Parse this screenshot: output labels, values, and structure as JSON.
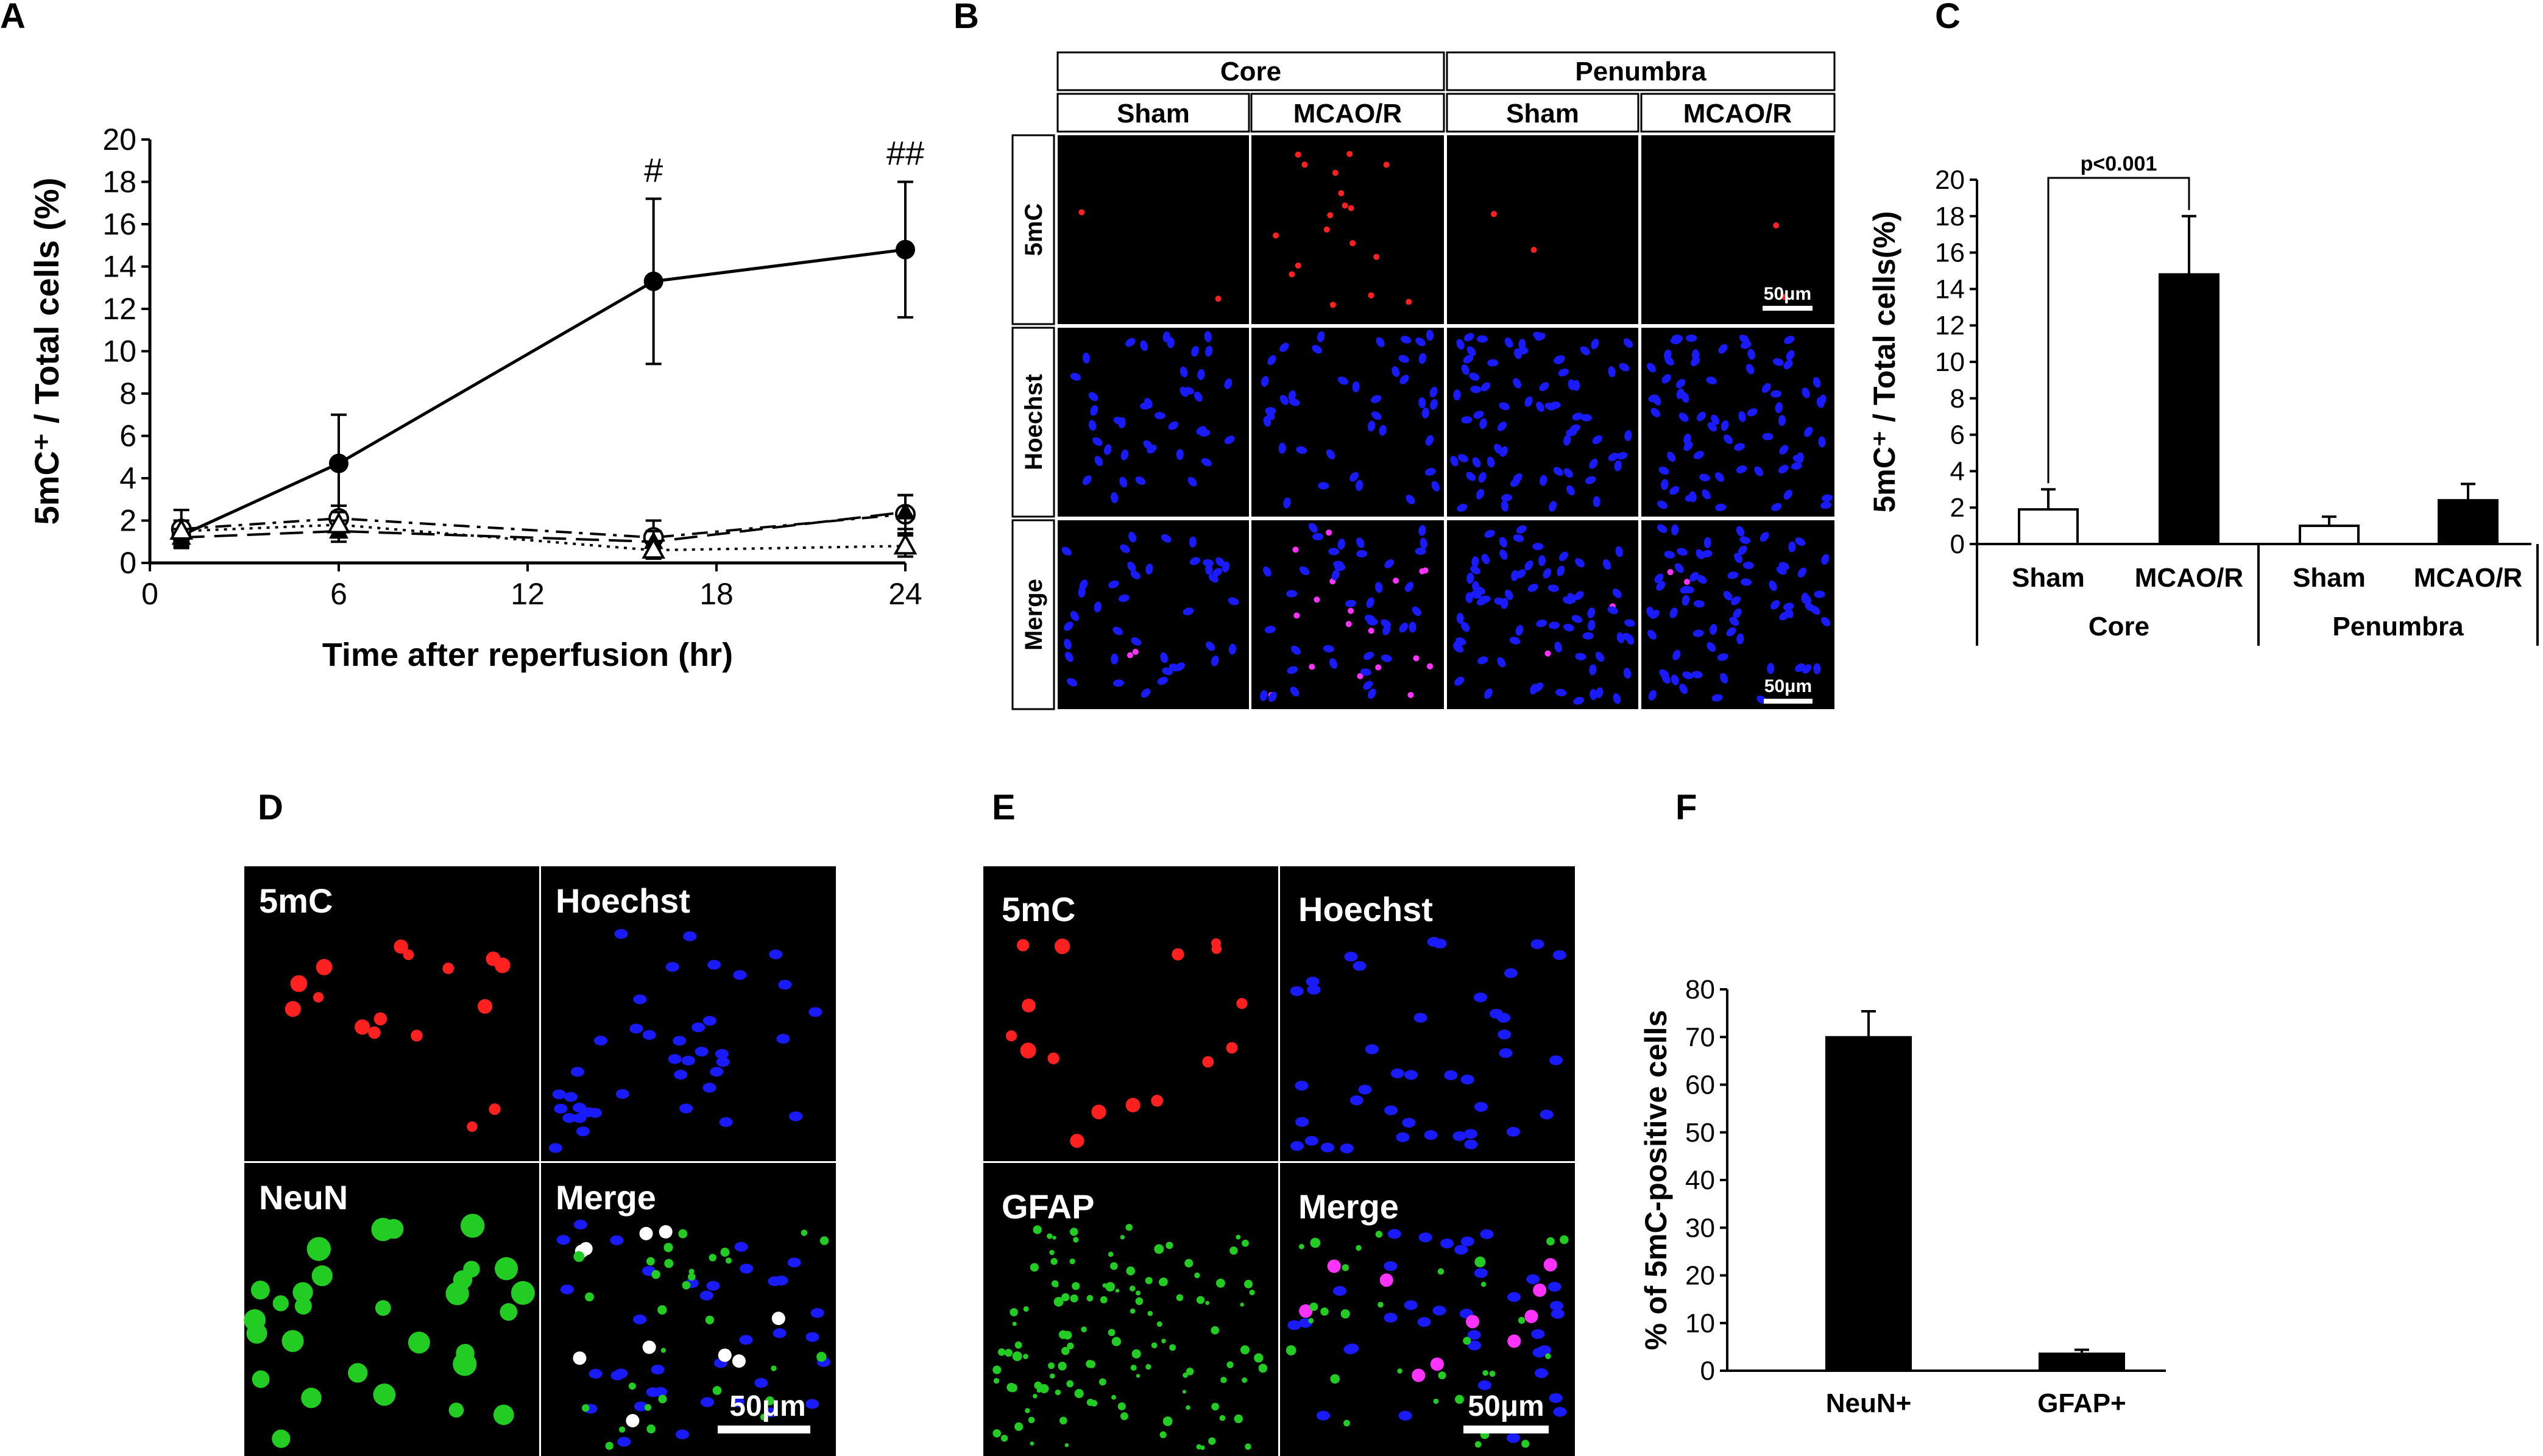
{
  "panel_labels": {
    "a": "A",
    "b": "B",
    "c": "C",
    "d": "D",
    "e": "E",
    "f": "F"
  },
  "panelB": {
    "groups": [
      "Core",
      "Penumbra"
    ],
    "columns": [
      "Sham",
      "MCAO/R",
      "Sham",
      "MCAO/R"
    ],
    "rows": [
      "5mC",
      "Hoechst",
      "Merge"
    ],
    "scalebar": "50μm"
  },
  "panelD": {
    "tiles": [
      "5mC",
      "Hoechst",
      "NeuN",
      "Merge"
    ],
    "scalebar": "50μm"
  },
  "panelE": {
    "tiles": [
      "5mC",
      "Hoechst",
      "GFAP",
      "Merge"
    ],
    "scalebar": "50μm"
  },
  "colors": {
    "red_stain": "#ff2020",
    "blue_stain": "#1a1aff",
    "green_stain": "#22cc22",
    "magenta_stain": "#ff33ff",
    "image_bg": "#000000"
  },
  "chart_data": [
    {
      "id": "A",
      "type": "line",
      "xlabel": "Time after reperfusion (hr)",
      "ylabel": "5mC⁺ / Total cells (%)",
      "xlim": [
        0,
        24
      ],
      "ylim": [
        0,
        20
      ],
      "xticks": [
        "0",
        "6",
        "12",
        "18",
        "24"
      ],
      "yticks": [
        "0",
        "2",
        "4",
        "6",
        "8",
        "10",
        "12",
        "14",
        "16",
        "18",
        "20"
      ],
      "series": [
        {
          "x": [
            1,
            6,
            16,
            24
          ],
          "values": [
            1.3,
            4.7,
            13.3,
            14.8
          ],
          "err": [
            0.5,
            2.3,
            3.9,
            3.2
          ],
          "marker": "filled-circle",
          "line": "solid",
          "annotations": [
            "",
            "",
            "#",
            "##"
          ]
        },
        {
          "x": [
            1,
            6,
            16,
            24
          ],
          "values": [
            1.6,
            2.1,
            1.2,
            2.3
          ],
          "err": [
            0.9,
            0.6,
            0.8,
            0.9
          ],
          "marker": "open-circle",
          "line": "dash-dot"
        },
        {
          "x": [
            1,
            6,
            16,
            24
          ],
          "values": [
            1.2,
            1.5,
            1.0,
            2.4
          ],
          "err": [
            0.4,
            0.5,
            0.5,
            0.8
          ],
          "marker": "filled-triangle",
          "line": "long-dash"
        },
        {
          "x": [
            1,
            6,
            16,
            24
          ],
          "values": [
            1.5,
            1.8,
            0.6,
            0.8
          ],
          "err": [
            0.5,
            0.6,
            0.4,
            0.5
          ],
          "marker": "open-triangle",
          "line": "dotted"
        }
      ]
    },
    {
      "id": "C",
      "type": "bar",
      "categories": [
        "Sham",
        "MCAO/R",
        "Sham",
        "MCAO/R"
      ],
      "groups": [
        "Core",
        "Penumbra"
      ],
      "values": [
        1.9,
        14.8,
        1.0,
        2.4
      ],
      "err": [
        1.1,
        3.2,
        0.5,
        0.9
      ],
      "bar_fill": [
        "white",
        "black",
        "white",
        "black"
      ],
      "ylabel": "5mC⁺ / Total cells(%)",
      "ylim": [
        0,
        20
      ],
      "yticks": [
        "0",
        "2",
        "4",
        "6",
        "8",
        "10",
        "12",
        "14",
        "16",
        "18",
        "20"
      ],
      "annotation": "p<0.001"
    },
    {
      "id": "F",
      "type": "bar",
      "categories": [
        "NeuN+",
        "GFAP+"
      ],
      "values": [
        70.2,
        3.8
      ],
      "err": [
        5.2,
        0.6
      ],
      "ylabel": "% of 5mC-positive cells",
      "ylim": [
        0,
        80
      ],
      "yticks": [
        "0",
        "10",
        "20",
        "30",
        "40",
        "50",
        "60",
        "70",
        "80"
      ]
    }
  ]
}
